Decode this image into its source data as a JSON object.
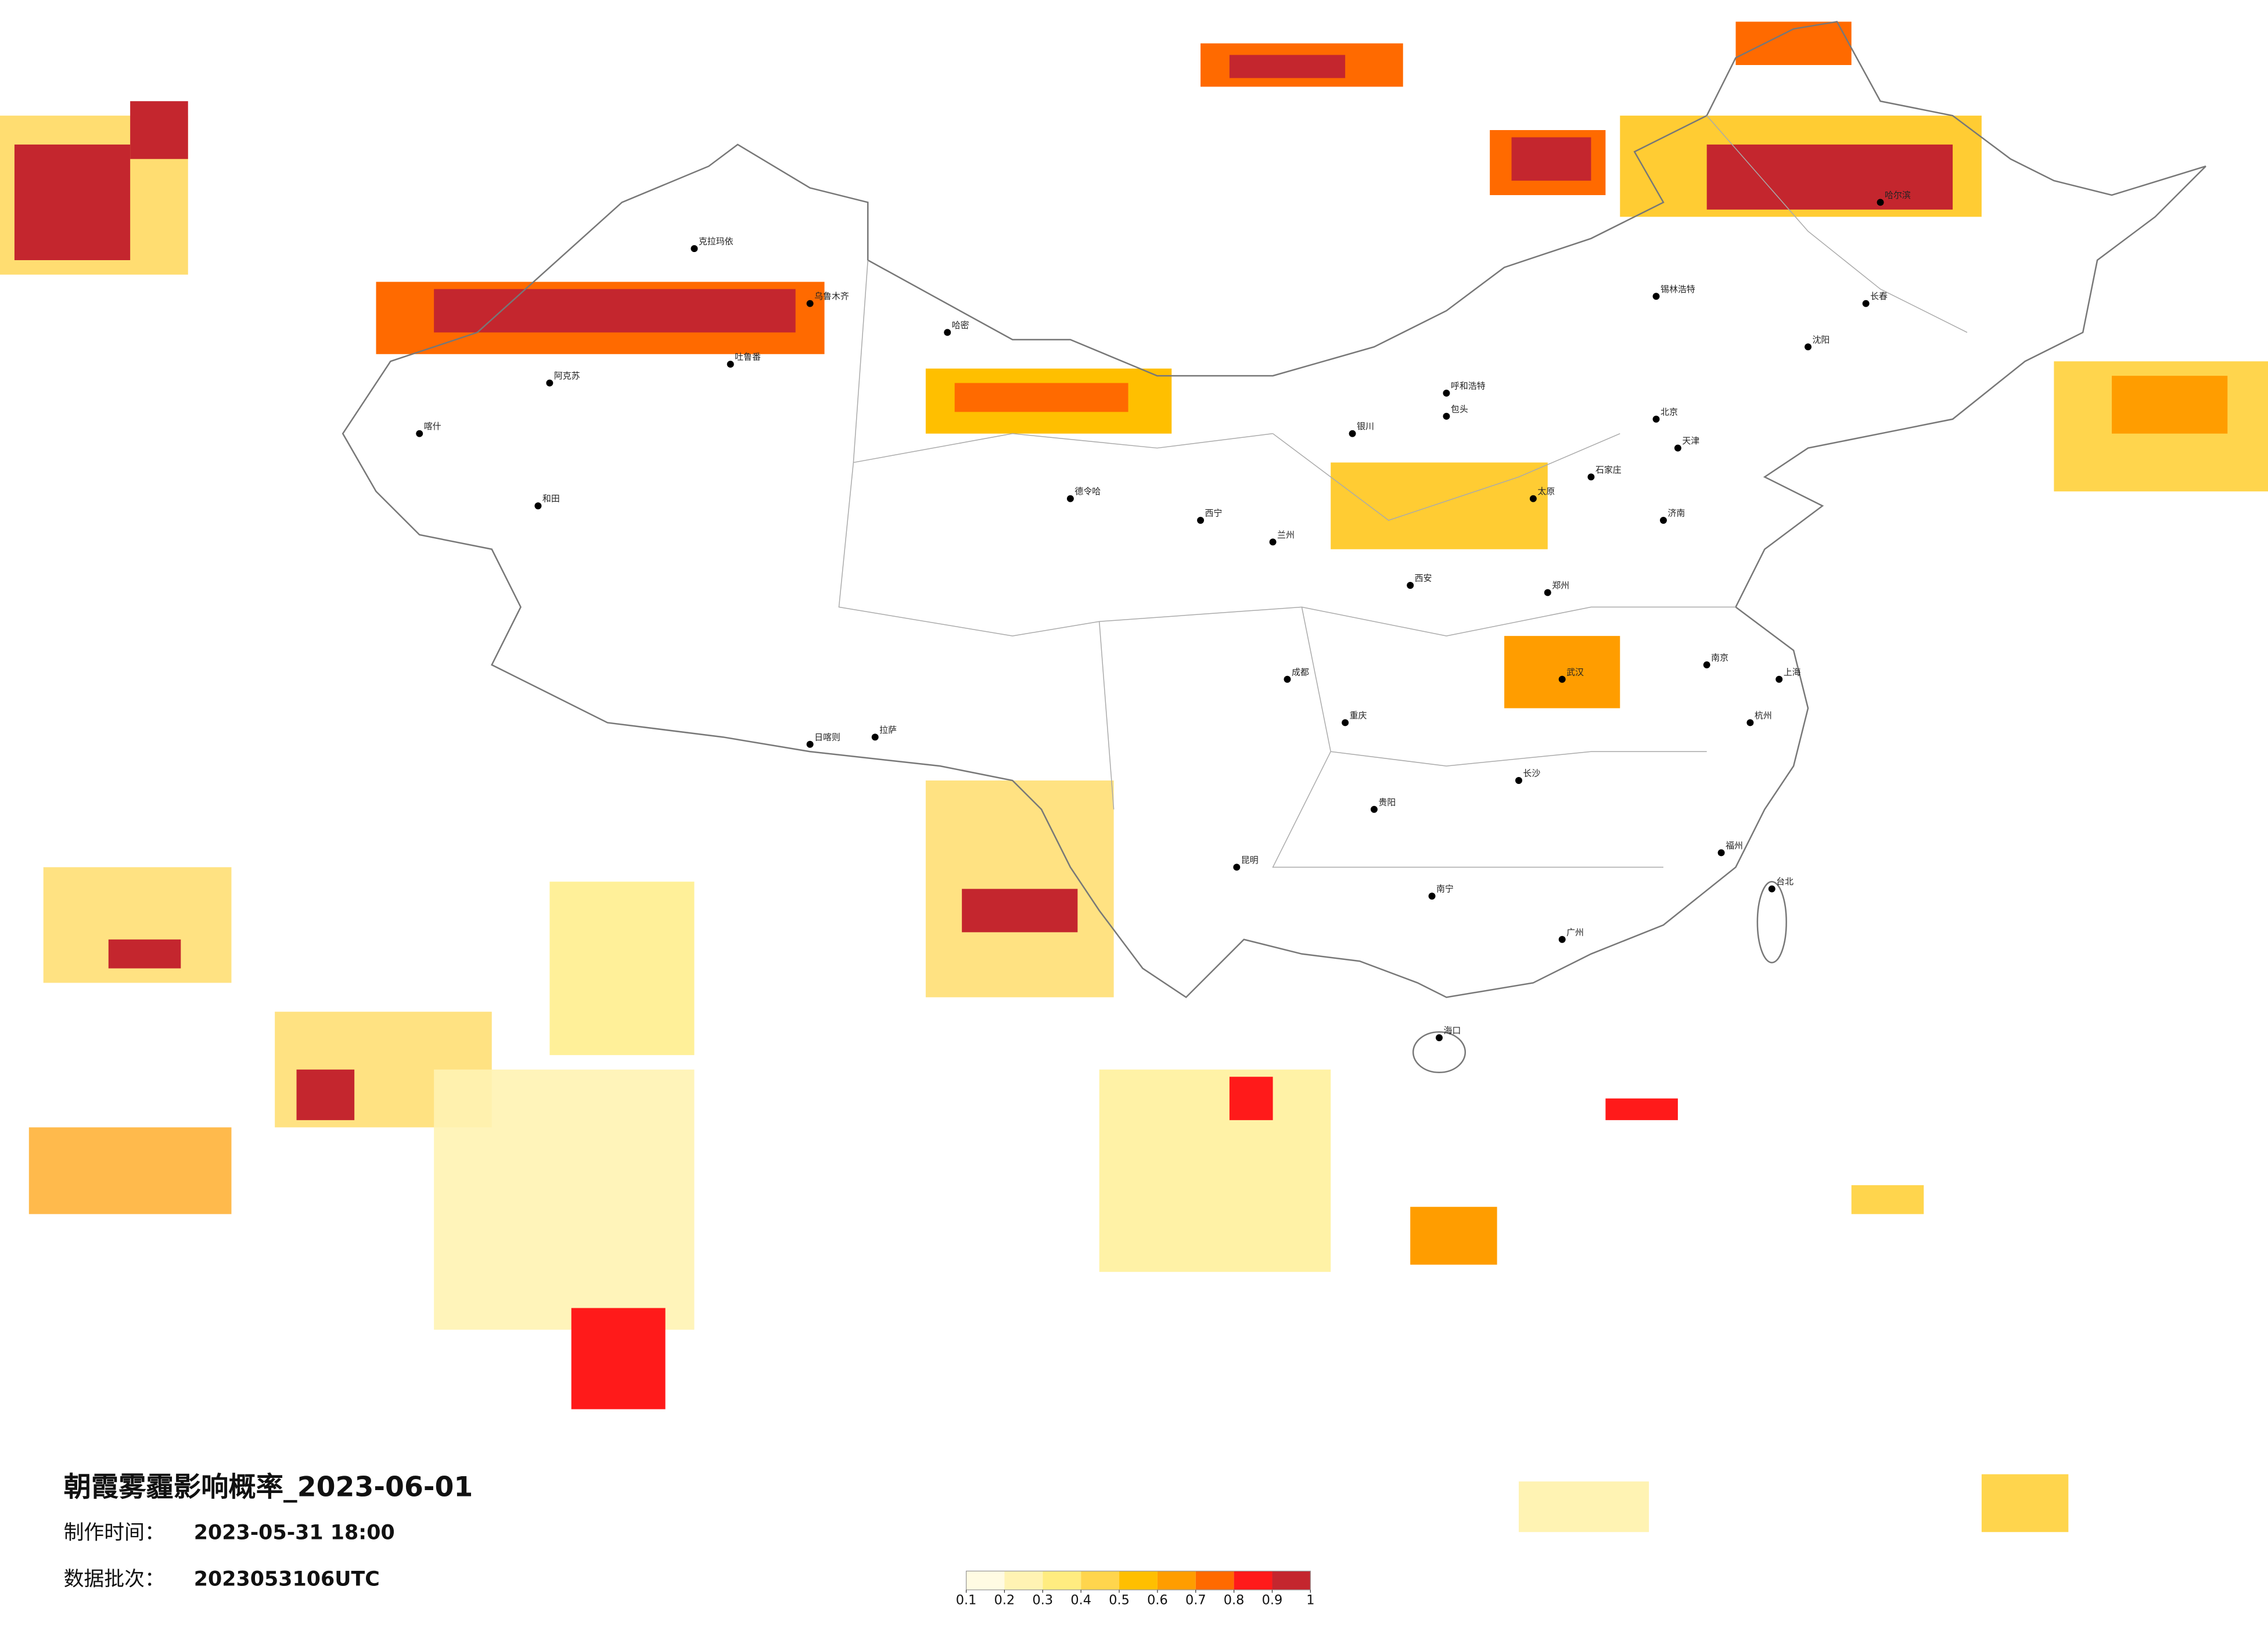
{
  "header": {
    "title": "朝霞雾霾影响概率_2023-06-01",
    "production_time_label": "制作时间：",
    "production_time": "2023-05-31 18:00",
    "batch_label": "数据批次：",
    "batch": "2023053106UTC"
  },
  "legend": {
    "ticks": [
      0.1,
      0.2,
      0.3,
      0.4,
      0.5,
      0.6,
      0.7,
      0.8,
      0.9,
      1
    ],
    "colors": [
      "#fffbe3",
      "#fff3b3",
      "#ffec80",
      "#ffd54d",
      "#ffbf00",
      "#ff9d00",
      "#ff6a00",
      "#ff1a1a",
      "#c4262e"
    ]
  },
  "cities": [
    "克拉玛依",
    "乌鲁木齐",
    "吐鲁番",
    "阿克苏",
    "喀什",
    "和田",
    "哈密",
    "德令哈",
    "拉萨",
    "日喀则",
    "西宁",
    "兰州",
    "银川",
    "呼和浩特",
    "包头",
    "北京",
    "天津",
    "石家庄",
    "太原",
    "西安",
    "郑州",
    "济南",
    "成都",
    "重庆",
    "武汉",
    "长沙",
    "贵阳",
    "昆明",
    "南宁",
    "广州",
    "福州",
    "杭州",
    "南京",
    "上海",
    "沈阳",
    "长春",
    "哈尔滨",
    "海口",
    "台北",
    "锡林浩特"
  ]
}
